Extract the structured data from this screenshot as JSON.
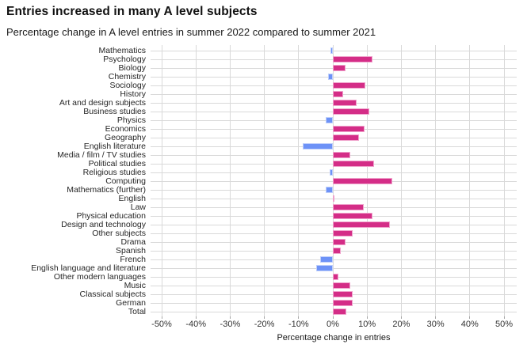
{
  "chart_data": {
    "type": "bar",
    "orientation": "horizontal",
    "title": "Entries increased in many A level subjects",
    "subtitle": "Percentage change in A level entries in summer 2022 compared to summer 2021",
    "xlabel": "Percentage change in entries",
    "xlim": [
      -53,
      53
    ],
    "grid": true,
    "legend_position": "none",
    "x_ticks": [
      {
        "value": -50,
        "label": "-50%"
      },
      {
        "value": -40,
        "label": "-40%"
      },
      {
        "value": -30,
        "label": "-30%"
      },
      {
        "value": -20,
        "label": "-20%"
      },
      {
        "value": -10,
        "label": "-10%"
      },
      {
        "value": 0,
        "label": "0%"
      },
      {
        "value": 10,
        "label": "10%"
      },
      {
        "value": 20,
        "label": "20%"
      },
      {
        "value": 30,
        "label": "30%"
      },
      {
        "value": 40,
        "label": "40%"
      },
      {
        "value": 50,
        "label": "50%"
      }
    ],
    "categories": [
      "Mathematics",
      "Psychology",
      "Biology",
      "Chemistry",
      "Sociology",
      "History",
      "Art and design subjects",
      "Business studies",
      "Physics",
      "Economics",
      "Geography",
      "English literature",
      "Media / film / TV studies",
      "Political studies",
      "Religious studies",
      "Computing",
      "Mathematics (further)",
      "English",
      "Law",
      "Physical education",
      "Design and technology",
      "Other subjects",
      "Drama",
      "Spanish",
      "French",
      "English language and literature",
      "Other modern languages",
      "Music",
      "Classical subjects",
      "German",
      "Total"
    ],
    "values": [
      -0.8,
      11.6,
      3.8,
      -1.3,
      9.4,
      3.1,
      7.0,
      10.6,
      -2.1,
      9.3,
      7.6,
      -8.9,
      5.2,
      12.1,
      -1.0,
      17.4,
      -2.1,
      0.3,
      9.0,
      11.6,
      16.6,
      5.7,
      3.6,
      2.2,
      -3.6,
      -4.8,
      1.7,
      5.2,
      5.9,
      5.9,
      4.0
    ],
    "colors": {
      "positive": "#d42d87",
      "positive_border": "#f0a3cc",
      "negative": "#6d92f7",
      "negative_border": "#bfcffb",
      "gridline": "#d9d9d9",
      "title_text": "#111111",
      "axis_text": "#333333"
    }
  }
}
